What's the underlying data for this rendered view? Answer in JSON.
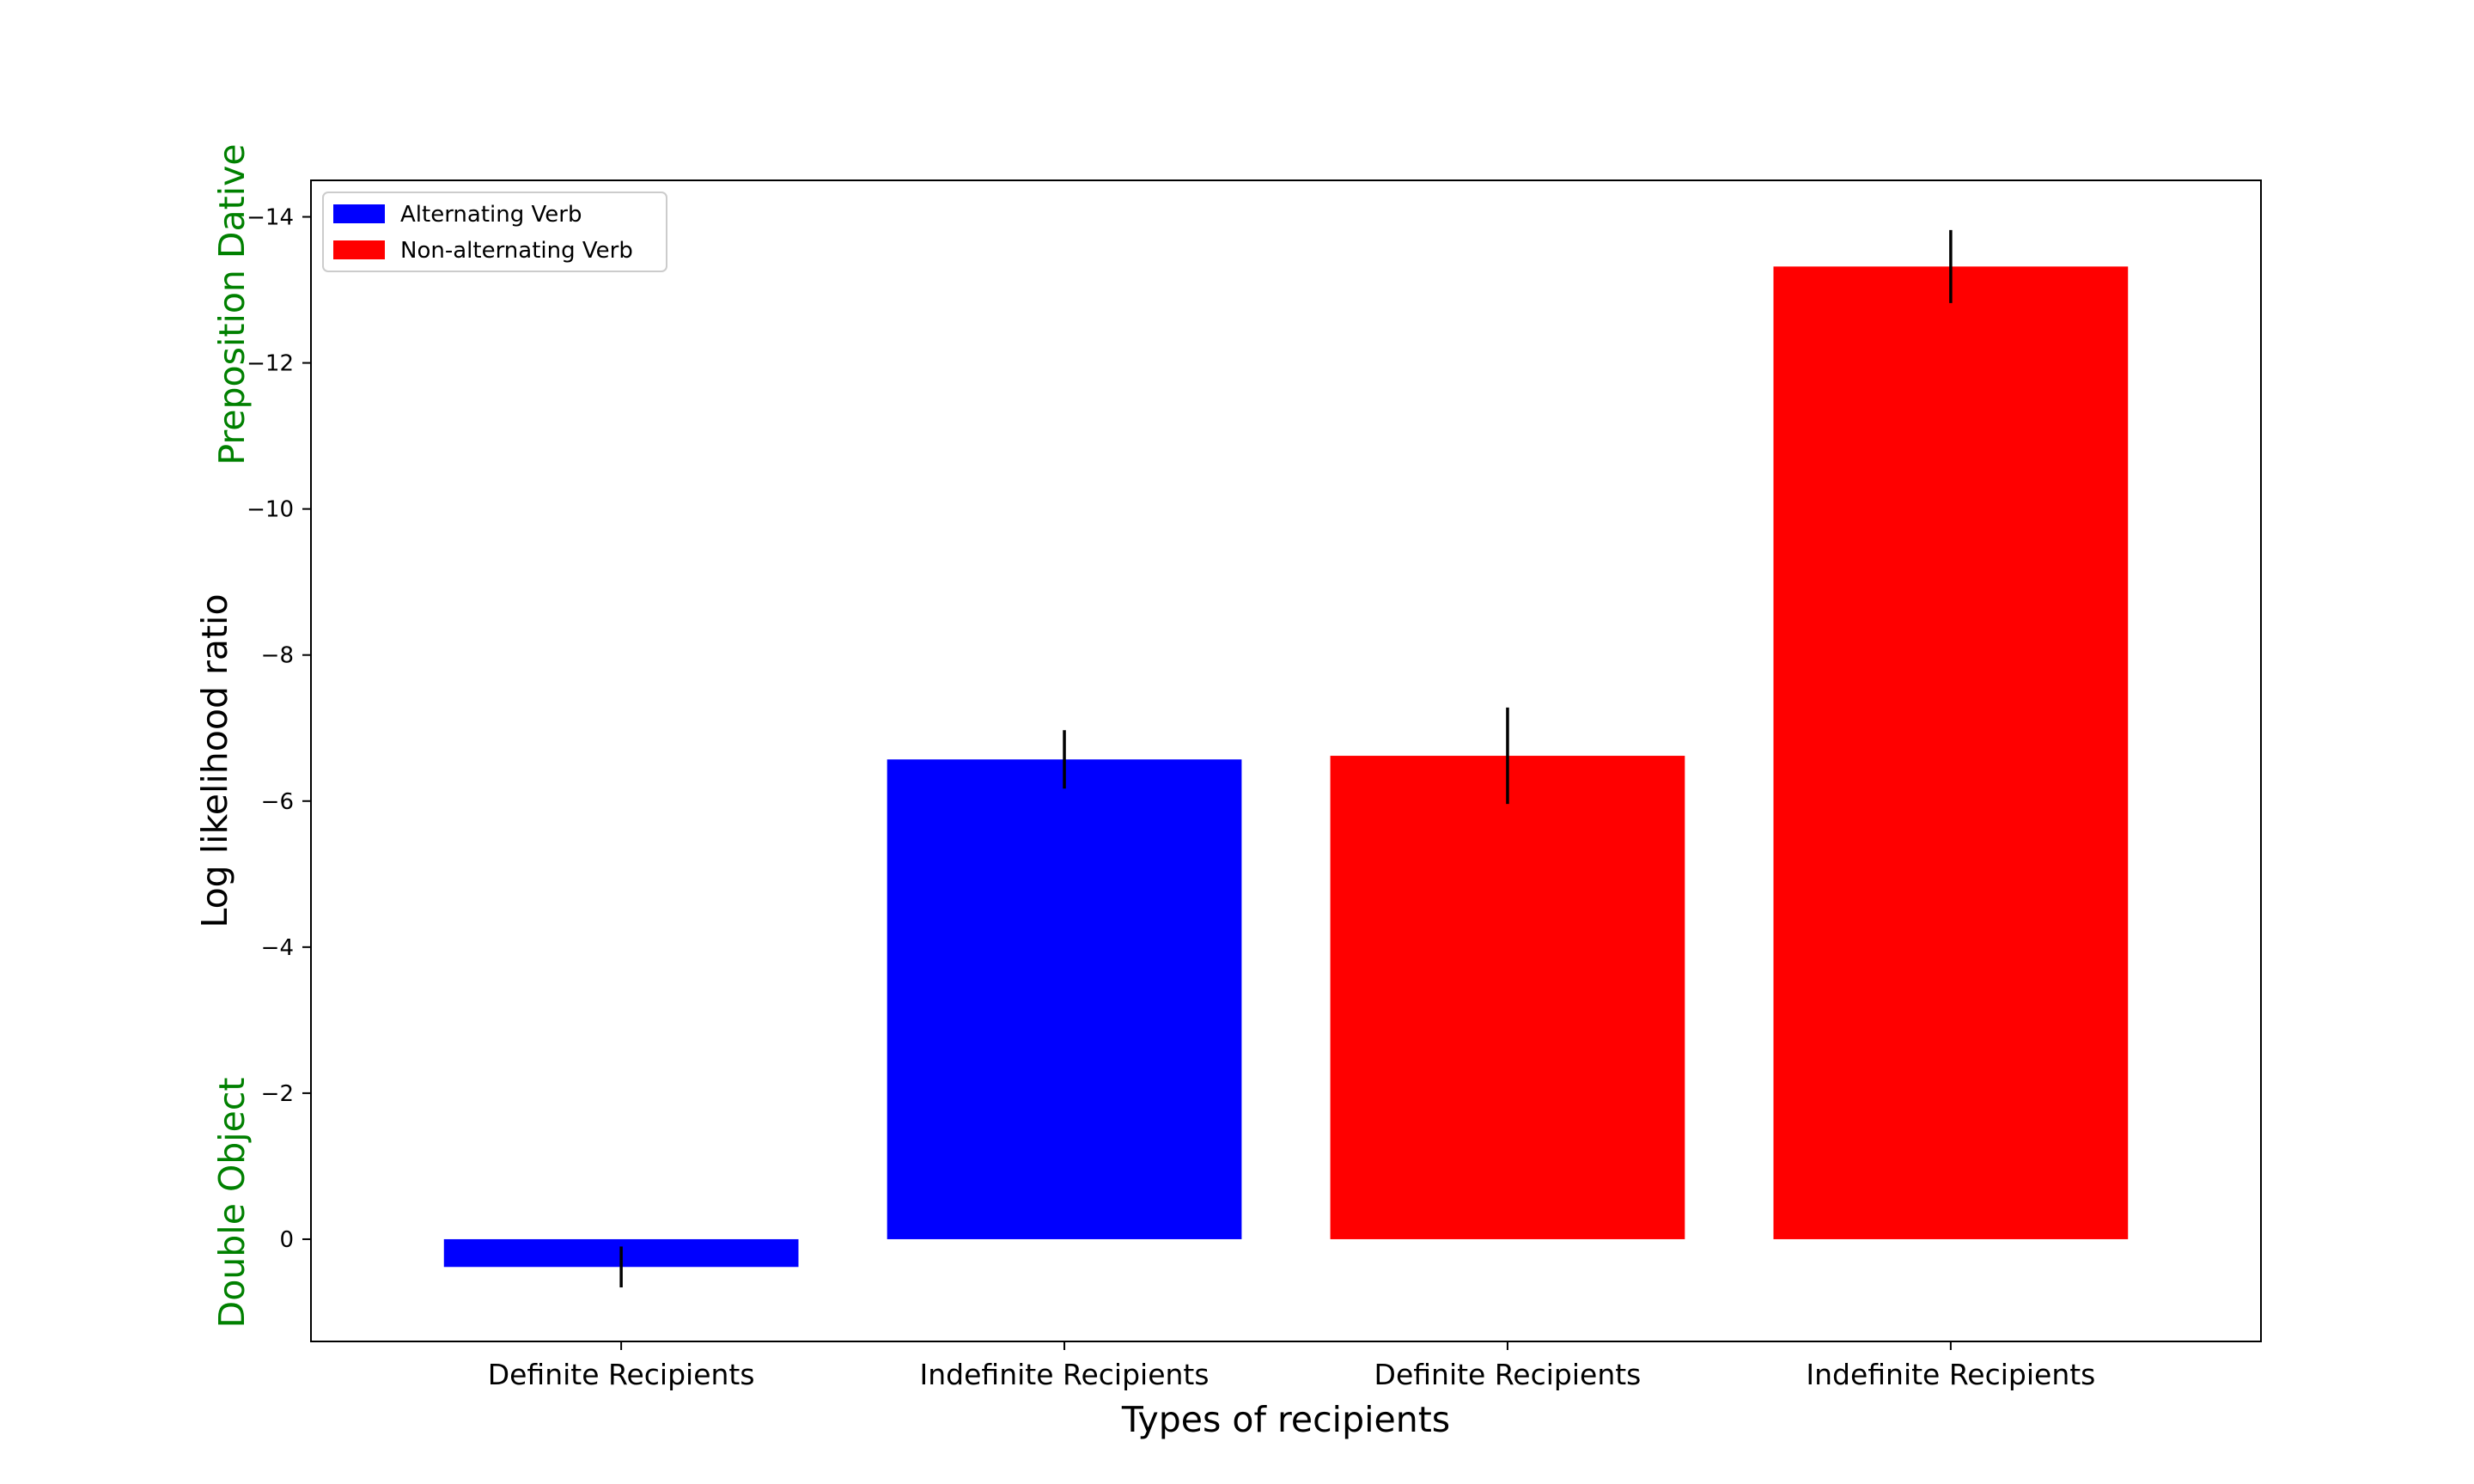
{
  "chart_data": {
    "type": "bar",
    "title": "",
    "xlabel": "Types of recipients",
    "ylabel": "Log likelihood ratio",
    "y_inverted": true,
    "ylim": [
      1.4,
      -14.5
    ],
    "yticks": [
      0,
      -2,
      -4,
      -6,
      -8,
      -10,
      -12,
      -14
    ],
    "ytick_labels": [
      "0",
      "−2",
      "−4",
      "−6",
      "−8",
      "−10",
      "−12",
      "−14"
    ],
    "side_labels": {
      "top": "Preposition Dative",
      "bottom": "Double Object",
      "color": "#008000"
    },
    "categories": [
      "Definite Recipients",
      "Indefinite Recipients",
      "Definite Recipients",
      "Indefinite Recipients"
    ],
    "bars": [
      {
        "category": "Definite Recipients",
        "series": "Alternating Verb",
        "value": 0.38,
        "error": 0.28
      },
      {
        "category": "Indefinite Recipients",
        "series": "Alternating Verb",
        "value": -6.57,
        "error": 0.4
      },
      {
        "category": "Definite Recipients",
        "series": "Non-alternating Verb",
        "value": -6.62,
        "error": 0.66
      },
      {
        "category": "Indefinite Recipients",
        "series": "Non-alternating Verb",
        "value": -13.32,
        "error": 0.5
      }
    ],
    "series": [
      {
        "name": "Alternating Verb",
        "color": "#0000ff"
      },
      {
        "name": "Non-alternating Verb",
        "color": "#ff0000"
      }
    ],
    "legend": {
      "placement": "top-left"
    },
    "grid": false
  }
}
